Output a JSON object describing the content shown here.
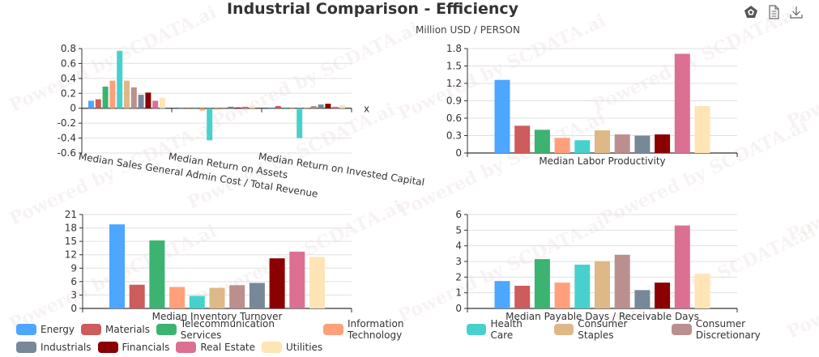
{
  "title": "Industrial Comparison - Efficiency",
  "subtitle": "Million USD / PERSON",
  "toolbox": [
    {
      "name": "data-view-icon",
      "glyph": "pentagon"
    },
    {
      "name": "document-icon",
      "glyph": "doc"
    },
    {
      "name": "download-icon",
      "glyph": "download"
    }
  ],
  "watermark_text": "Powered by SCDATA.ai",
  "colors": {
    "Energy": "#4da6ff",
    "Materials": "#cd5c5c",
    "Telecommunication Services": "#3cb371",
    "Information Technology": "#ffa07a",
    "Health Care": "#48d1cc",
    "Consumer Staples": "#deb887",
    "Consumer Discretionary": "#bc8f8f",
    "Industrials": "#778899",
    "Financials": "#8b0000",
    "Real Estate": "#db7093",
    "Utilities": "#ffe4b5"
  },
  "legend": {
    "rows": [
      [
        "Energy",
        "Materials",
        "Telecommunication Services",
        "Information Technology",
        "Health Care",
        "Consumer Staples",
        "Consumer Discretionary"
      ],
      [
        "Industrials",
        "Financials",
        "Real Estate",
        "Utilities"
      ]
    ]
  },
  "chart_data": [
    {
      "type": "bar",
      "id": "chart1",
      "categories": [
        "Median Sales General Admin Cost / Total Revenue",
        "Median Return on Assets",
        "Median Return on Invested Capital"
      ],
      "xlabel": "x",
      "ylim": [
        -0.6,
        0.8
      ],
      "yticks": [
        "0.8",
        "0.6",
        "0.4",
        "0.2",
        "0",
        "-0.2",
        "-0.4",
        "-0.6"
      ],
      "grid": true,
      "series": [
        {
          "name": "Energy",
          "values": [
            0.1,
            0.0,
            0.0
          ]
        },
        {
          "name": "Materials",
          "values": [
            0.12,
            0.0,
            0.03
          ]
        },
        {
          "name": "Telecommunication Services",
          "values": [
            0.29,
            -0.01,
            -0.01
          ]
        },
        {
          "name": "Information Technology",
          "values": [
            0.37,
            -0.03,
            -0.005
          ]
        },
        {
          "name": "Health Care",
          "values": [
            0.77,
            -0.43,
            -0.4
          ]
        },
        {
          "name": "Consumer Staples",
          "values": [
            0.37,
            -0.02,
            0.005
          ]
        },
        {
          "name": "Consumer Discretionary",
          "values": [
            0.28,
            0.005,
            0.03
          ]
        },
        {
          "name": "Industrials",
          "values": [
            0.18,
            0.02,
            0.05
          ]
        },
        {
          "name": "Financials",
          "values": [
            0.21,
            0.01,
            0.06
          ]
        },
        {
          "name": "Real Estate",
          "values": [
            0.1,
            0.02,
            0.02
          ]
        },
        {
          "name": "Utilities",
          "values": [
            0.14,
            0.025,
            0.04
          ]
        }
      ]
    },
    {
      "type": "bar",
      "id": "chart2",
      "categories": [
        "Median Labor Productivity"
      ],
      "ylim": [
        0,
        1.8
      ],
      "yticks": [
        "1.8",
        "1.5",
        "1.2",
        "0.9",
        "0.6",
        "0.3",
        "0"
      ],
      "grid": true,
      "series": [
        {
          "name": "Energy",
          "values": [
            1.26
          ]
        },
        {
          "name": "Materials",
          "values": [
            0.47
          ]
        },
        {
          "name": "Telecommunication Services",
          "values": [
            0.4
          ]
        },
        {
          "name": "Information Technology",
          "values": [
            0.26
          ]
        },
        {
          "name": "Health Care",
          "values": [
            0.22
          ]
        },
        {
          "name": "Consumer Staples",
          "values": [
            0.39
          ]
        },
        {
          "name": "Consumer Discretionary",
          "values": [
            0.32
          ]
        },
        {
          "name": "Industrials",
          "values": [
            0.3
          ]
        },
        {
          "name": "Financials",
          "values": [
            0.32
          ]
        },
        {
          "name": "Real Estate",
          "values": [
            1.71
          ]
        },
        {
          "name": "Utilities",
          "values": [
            0.81
          ]
        }
      ]
    },
    {
      "type": "bar",
      "id": "chart3",
      "categories": [
        "Median Inventory Turnover"
      ],
      "ylim": [
        0,
        21
      ],
      "yticks": [
        "21",
        "18",
        "15",
        "12",
        "9",
        "6",
        "3",
        "0"
      ],
      "grid": true,
      "series": [
        {
          "name": "Energy",
          "values": [
            18.8
          ]
        },
        {
          "name": "Materials",
          "values": [
            5.3
          ]
        },
        {
          "name": "Telecommunication Services",
          "values": [
            15.2
          ]
        },
        {
          "name": "Information Technology",
          "values": [
            4.8
          ]
        },
        {
          "name": "Health Care",
          "values": [
            2.8
          ]
        },
        {
          "name": "Consumer Staples",
          "values": [
            4.6
          ]
        },
        {
          "name": "Consumer Discretionary",
          "values": [
            5.2
          ]
        },
        {
          "name": "Industrials",
          "values": [
            5.7
          ]
        },
        {
          "name": "Financials",
          "values": [
            11.2
          ]
        },
        {
          "name": "Real Estate",
          "values": [
            12.7
          ]
        },
        {
          "name": "Utilities",
          "values": [
            11.5
          ]
        }
      ]
    },
    {
      "type": "bar",
      "id": "chart4",
      "categories": [
        "Median Payable Days / Receivable Days"
      ],
      "ylim": [
        0,
        6
      ],
      "yticks": [
        "6",
        "5",
        "4",
        "3",
        "2",
        "1",
        "0"
      ],
      "grid": true,
      "series": [
        {
          "name": "Energy",
          "values": [
            1.75
          ]
        },
        {
          "name": "Materials",
          "values": [
            1.45
          ]
        },
        {
          "name": "Telecommunication Services",
          "values": [
            3.15
          ]
        },
        {
          "name": "Information Technology",
          "values": [
            1.65
          ]
        },
        {
          "name": "Health Care",
          "values": [
            2.8
          ]
        },
        {
          "name": "Consumer Staples",
          "values": [
            3.02
          ]
        },
        {
          "name": "Consumer Discretionary",
          "values": [
            3.43
          ]
        },
        {
          "name": "Industrials",
          "values": [
            1.17
          ]
        },
        {
          "name": "Financials",
          "values": [
            1.65
          ]
        },
        {
          "name": "Real Estate",
          "values": [
            5.3
          ]
        },
        {
          "name": "Utilities",
          "values": [
            2.21
          ]
        }
      ]
    }
  ]
}
